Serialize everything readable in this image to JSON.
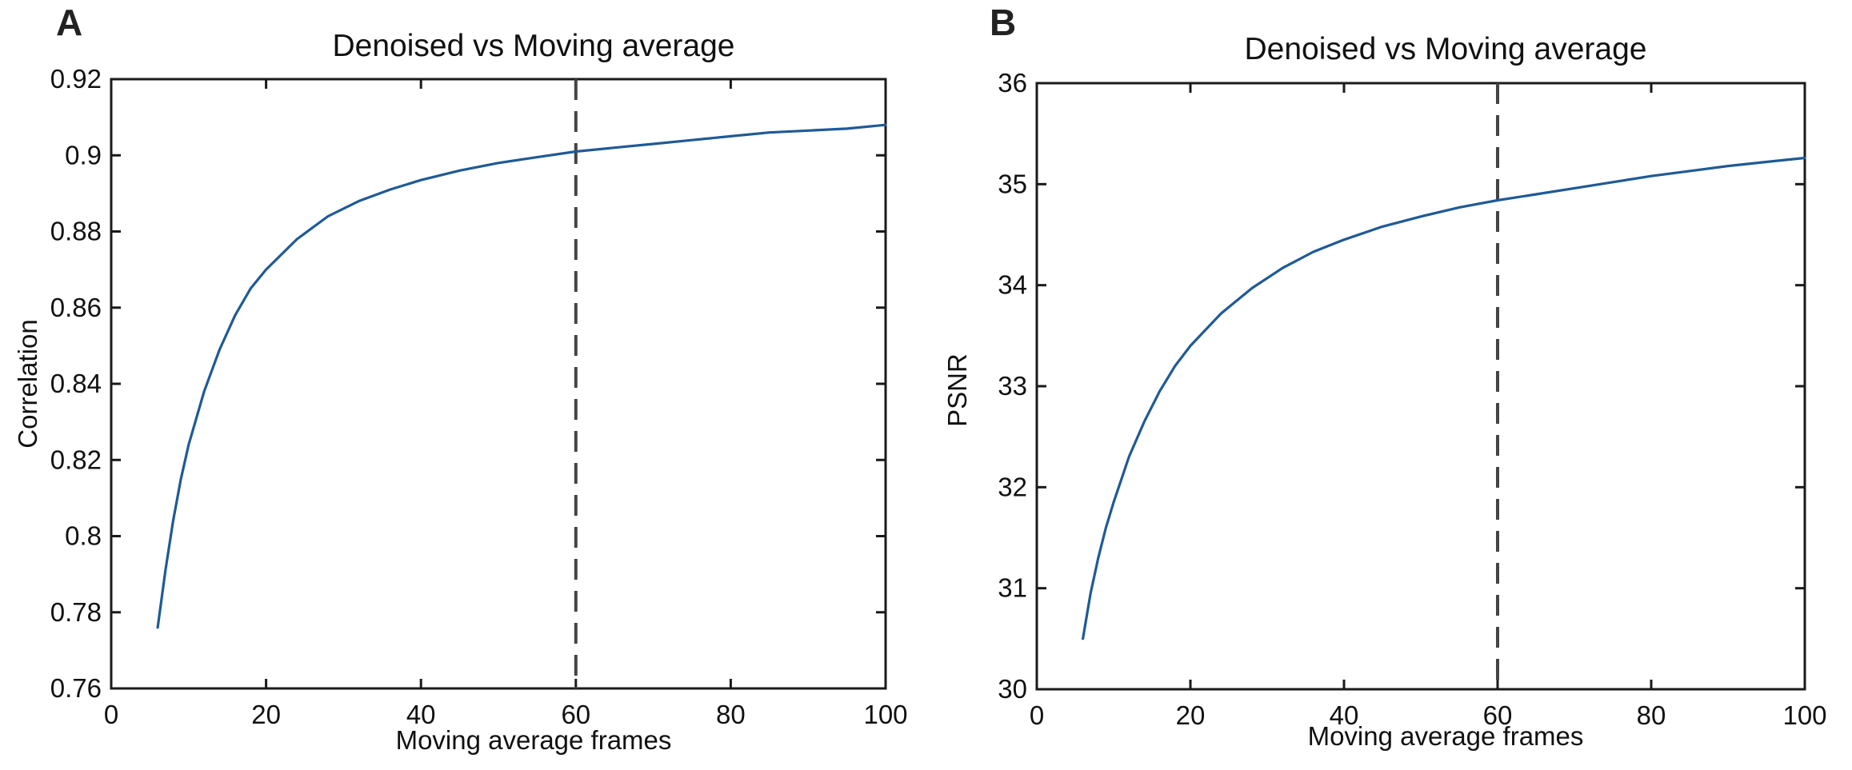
{
  "chart_data": [
    {
      "panel_letter": "A",
      "type": "line",
      "title": "Denoised vs Moving average",
      "xlabel": "Moving average frames",
      "ylabel": "Correlation",
      "xlim": [
        0,
        100
      ],
      "ylim": [
        0.76,
        0.92
      ],
      "xticks": [
        "0",
        "20",
        "40",
        "60",
        "80",
        "100"
      ],
      "yticks": [
        "0.76",
        "0.78",
        "0.8",
        "0.82",
        "0.84",
        "0.86",
        "0.88",
        "0.9",
        "0.92"
      ],
      "xtick_values": [
        0,
        20,
        40,
        60,
        80,
        100
      ],
      "ytick_values": [
        0.76,
        0.78,
        0.8,
        0.82,
        0.84,
        0.86,
        0.88,
        0.9,
        0.92
      ],
      "vline_x": 60,
      "color": "#1f5a96",
      "grid": false,
      "series": [
        {
          "x": [
            6,
            7,
            8,
            9,
            10,
            12,
            14,
            16,
            18,
            20,
            24,
            28,
            32,
            36,
            40,
            45,
            50,
            55,
            60,
            65,
            70,
            75,
            80,
            85,
            90,
            95,
            100
          ],
          "y": [
            0.776,
            0.791,
            0.804,
            0.815,
            0.824,
            0.838,
            0.849,
            0.858,
            0.865,
            0.87,
            0.878,
            0.884,
            0.888,
            0.891,
            0.8935,
            0.896,
            0.898,
            0.8995,
            0.901,
            0.902,
            0.903,
            0.904,
            0.905,
            0.906,
            0.9065,
            0.907,
            0.908
          ]
        }
      ]
    },
    {
      "panel_letter": "B",
      "type": "line",
      "title": "Denoised vs Moving average",
      "xlabel": "Moving average frames",
      "ylabel": "PSNR",
      "xlim": [
        0,
        100
      ],
      "ylim": [
        30,
        36
      ],
      "xticks": [
        "0",
        "20",
        "40",
        "60",
        "80",
        "100"
      ],
      "yticks": [
        "30",
        "31",
        "32",
        "33",
        "34",
        "35",
        "36"
      ],
      "xtick_values": [
        0,
        20,
        40,
        60,
        80,
        100
      ],
      "ytick_values": [
        30,
        31,
        32,
        33,
        34,
        35,
        36
      ],
      "vline_x": 60,
      "color": "#1f5a96",
      "grid": false,
      "series": [
        {
          "x": [
            6,
            7,
            8,
            9,
            10,
            12,
            14,
            16,
            18,
            20,
            24,
            28,
            32,
            36,
            40,
            45,
            50,
            55,
            60,
            65,
            70,
            75,
            80,
            85,
            90,
            95,
            100
          ],
          "y": [
            30.5,
            30.95,
            31.3,
            31.6,
            31.85,
            32.3,
            32.65,
            32.95,
            33.2,
            33.4,
            33.72,
            33.97,
            34.17,
            34.33,
            34.45,
            34.58,
            34.68,
            34.77,
            34.84,
            34.9,
            34.96,
            35.02,
            35.08,
            35.13,
            35.18,
            35.22,
            35.26
          ]
        }
      ]
    }
  ]
}
